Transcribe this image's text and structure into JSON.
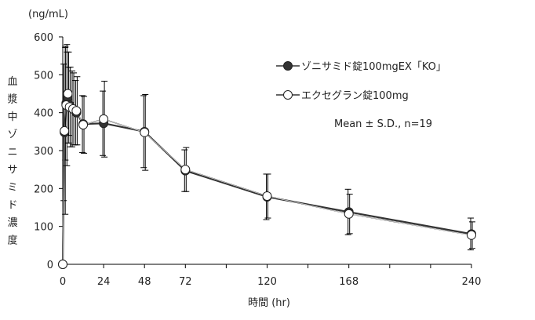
{
  "chart_data": {
    "type": "line",
    "unit_label": "(ng/mL)",
    "xlabel": "時間 (hr)",
    "ylabel": "血漿中ゾニサミド濃度",
    "xlim": [
      0,
      240
    ],
    "ylim": [
      0,
      600
    ],
    "xticks": [
      0,
      24,
      48,
      72,
      120,
      168,
      240
    ],
    "yticks": [
      0,
      100,
      200,
      300,
      400,
      500,
      600
    ],
    "annotation": "Mean ± S.D., n=19",
    "x": [
      0,
      1,
      2,
      3,
      4,
      6,
      8,
      12,
      24,
      48,
      72,
      120,
      168,
      240
    ],
    "series": [
      {
        "name": "ゾニサミド錠100mgEX「KO」",
        "marker": "filled",
        "color": "#333333",
        "values": [
          0,
          348,
          425,
          440,
          420,
          410,
          400,
          370,
          372,
          350,
          247,
          178,
          138,
          80
        ],
        "sd": [
          0,
          180,
          150,
          120,
          100,
          100,
          85,
          75,
          85,
          95,
          55,
          60,
          60,
          42
        ]
      },
      {
        "name": "エクセグラン錠100mg",
        "marker": "open",
        "color": "#ffffff",
        "values": [
          0,
          352,
          420,
          450,
          415,
          410,
          405,
          368,
          383,
          348,
          250,
          180,
          133,
          77
        ],
        "sd": [
          0,
          220,
          160,
          110,
          105,
          95,
          90,
          75,
          100,
          100,
          58,
          58,
          52,
          35
        ]
      }
    ]
  }
}
